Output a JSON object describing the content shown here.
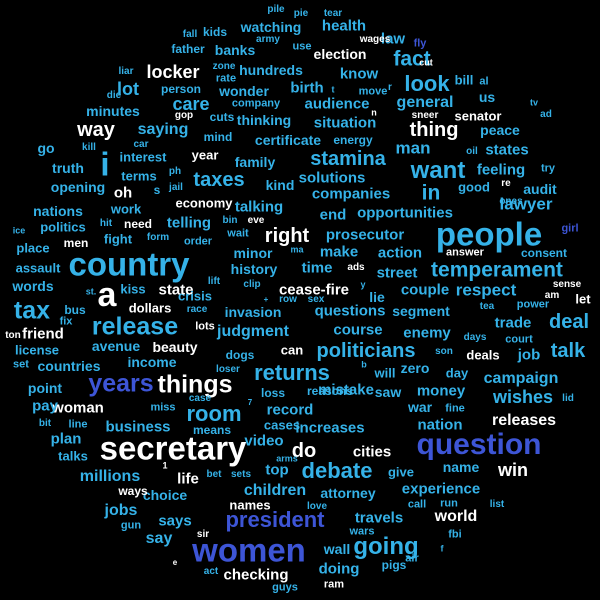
{
  "words": [
    {
      "text": "secretary",
      "tone": 0
    },
    {
      "text": "country",
      "tone": 2
    },
    {
      "text": "people",
      "tone": 2
    },
    {
      "text": "question",
      "tone": 3
    },
    {
      "text": "women",
      "tone": 3
    },
    {
      "text": "years",
      "tone": 3
    },
    {
      "text": "things",
      "tone": 0
    },
    {
      "text": "release",
      "tone": 2
    },
    {
      "text": "president",
      "tone": 3
    },
    {
      "text": "going",
      "tone": 2
    },
    {
      "text": "a",
      "tone": 0
    },
    {
      "text": "tax",
      "tone": 2
    },
    {
      "text": "i",
      "tone": 2
    },
    {
      "text": "temperament",
      "tone": 2
    },
    {
      "text": "returns",
      "tone": 2
    },
    {
      "text": "politicians",
      "tone": 2
    },
    {
      "text": "debate",
      "tone": 2
    },
    {
      "text": "want",
      "tone": 2
    },
    {
      "text": "taxes",
      "tone": 2
    },
    {
      "text": "stamina",
      "tone": 2
    },
    {
      "text": "look",
      "tone": 2
    },
    {
      "text": "fact",
      "tone": 2
    },
    {
      "text": "room",
      "tone": 2
    },
    {
      "text": "talk",
      "tone": 2
    },
    {
      "text": "deal",
      "tone": 2
    },
    {
      "text": "right",
      "tone": 0
    },
    {
      "text": "locker",
      "tone": 0
    },
    {
      "text": "way",
      "tone": 0
    },
    {
      "text": "thing",
      "tone": 0
    },
    {
      "text": "care",
      "tone": 2
    },
    {
      "text": "in",
      "tone": 2
    },
    {
      "text": "do",
      "tone": 0
    },
    {
      "text": "world",
      "tone": 0
    },
    {
      "text": "win",
      "tone": 0
    },
    {
      "text": "wishes",
      "tone": 2
    },
    {
      "text": "children",
      "tone": 2
    },
    {
      "text": "millions",
      "tone": 2
    },
    {
      "text": "campaign",
      "tone": 2
    },
    {
      "text": "lawyer",
      "tone": 2
    },
    {
      "text": "business",
      "tone": 2
    },
    {
      "text": "respect",
      "tone": 2
    },
    {
      "text": "judgment",
      "tone": 2
    },
    {
      "text": "man",
      "tone": 2
    },
    {
      "text": "releases",
      "tone": 0
    },
    {
      "text": "woman",
      "tone": 0
    },
    {
      "text": "checking",
      "tone": 0
    },
    {
      "text": "cities",
      "tone": 0
    },
    {
      "text": "life",
      "tone": 0
    },
    {
      "text": "oh",
      "tone": 0
    },
    {
      "text": "lot",
      "tone": 2
    },
    {
      "text": "saying",
      "tone": 2
    },
    {
      "text": "general",
      "tone": 2
    },
    {
      "text": "jobs",
      "tone": 2
    },
    {
      "text": "say",
      "tone": 2
    },
    {
      "text": "says",
      "tone": 2
    },
    {
      "text": "plan",
      "tone": 2
    },
    {
      "text": "pay",
      "tone": 2
    },
    {
      "text": "job",
      "tone": 2
    },
    {
      "text": "trade",
      "tone": 2
    },
    {
      "text": "enemy",
      "tone": 2
    },
    {
      "text": "couple",
      "tone": 2
    },
    {
      "text": "money",
      "tone": 2
    },
    {
      "text": "nation",
      "tone": 2
    },
    {
      "text": "experience",
      "tone": 2
    },
    {
      "text": "travels",
      "tone": 2
    },
    {
      "text": "doing",
      "tone": 2
    },
    {
      "text": "wall",
      "tone": 2
    },
    {
      "text": "record",
      "tone": 2
    },
    {
      "text": "mistake",
      "tone": 2
    },
    {
      "text": "video",
      "tone": 2
    },
    {
      "text": "top",
      "tone": 2
    },
    {
      "text": "increases",
      "tone": 2
    },
    {
      "text": "attorney",
      "tone": 2
    },
    {
      "text": "name",
      "tone": 2
    },
    {
      "text": "time",
      "tone": 2
    },
    {
      "text": "questions",
      "tone": 2
    },
    {
      "text": "course",
      "tone": 2
    },
    {
      "text": "make",
      "tone": 2
    },
    {
      "text": "action",
      "tone": 2
    },
    {
      "text": "prosecutor",
      "tone": 2
    },
    {
      "text": "opportunities",
      "tone": 2
    },
    {
      "text": "companies",
      "tone": 2
    },
    {
      "text": "solutions",
      "tone": 2
    },
    {
      "text": "end",
      "tone": 2
    },
    {
      "text": "talking",
      "tone": 2
    },
    {
      "text": "family",
      "tone": 2
    },
    {
      "text": "kind",
      "tone": 2
    },
    {
      "text": "know",
      "tone": 2
    },
    {
      "text": "situation",
      "tone": 2
    },
    {
      "text": "audience",
      "tone": 2
    },
    {
      "text": "birth",
      "tone": 2
    },
    {
      "text": "thinking",
      "tone": 2
    },
    {
      "text": "certificate",
      "tone": 2
    },
    {
      "text": "wonder",
      "tone": 2
    },
    {
      "text": "hundreds",
      "tone": 2
    },
    {
      "text": "banks",
      "tone": 2
    },
    {
      "text": "watching",
      "tone": 2
    },
    {
      "text": "health",
      "tone": 2
    },
    {
      "text": "election",
      "tone": 0
    },
    {
      "text": "law",
      "tone": 2
    },
    {
      "text": "fly",
      "tone": 3
    },
    {
      "text": "feeling",
      "tone": 2
    },
    {
      "text": "states",
      "tone": 2
    },
    {
      "text": "peace",
      "tone": 2
    },
    {
      "text": "audit",
      "tone": 2
    },
    {
      "text": "good",
      "tone": 2
    },
    {
      "text": "countries",
      "tone": 2
    },
    {
      "text": "nations",
      "tone": 2
    },
    {
      "text": "politics",
      "tone": 2
    },
    {
      "text": "opening",
      "tone": 2
    },
    {
      "text": "truth",
      "tone": 2
    },
    {
      "text": "minutes",
      "tone": 2
    },
    {
      "text": "interest",
      "tone": 2
    },
    {
      "text": "terms",
      "tone": 2
    },
    {
      "text": "work",
      "tone": 2
    },
    {
      "text": "fight",
      "tone": 2
    },
    {
      "text": "telling",
      "tone": 2
    },
    {
      "text": "economy",
      "tone": 0
    },
    {
      "text": "year",
      "tone": 0
    },
    {
      "text": "need",
      "tone": 0
    },
    {
      "text": "go",
      "tone": 2
    },
    {
      "text": "us",
      "tone": 2
    },
    {
      "text": "street",
      "tone": 2
    },
    {
      "text": "crisis",
      "tone": 2
    },
    {
      "text": "state",
      "tone": 0
    },
    {
      "text": "dollars",
      "tone": 0
    },
    {
      "text": "kiss",
      "tone": 2
    },
    {
      "text": "invasion",
      "tone": 2
    },
    {
      "text": "history",
      "tone": 2
    },
    {
      "text": "minor",
      "tone": 2
    },
    {
      "text": "cease-fire",
      "tone": 0
    },
    {
      "text": "lie",
      "tone": 2
    },
    {
      "text": "segment",
      "tone": 2
    },
    {
      "text": "let",
      "tone": 0
    },
    {
      "text": "deals",
      "tone": 0
    },
    {
      "text": "can",
      "tone": 0
    },
    {
      "text": "beauty",
      "tone": 0
    },
    {
      "text": "income",
      "tone": 2
    },
    {
      "text": "avenue",
      "tone": 2
    },
    {
      "text": "friend",
      "tone": 0
    },
    {
      "text": "license",
      "tone": 2
    },
    {
      "text": "words",
      "tone": 2
    },
    {
      "text": "assault",
      "tone": 2
    },
    {
      "text": "place",
      "tone": 2
    },
    {
      "text": "men",
      "tone": 0
    },
    {
      "text": "point",
      "tone": 2
    },
    {
      "text": "talks",
      "tone": 2
    },
    {
      "text": "choice",
      "tone": 2
    },
    {
      "text": "ways",
      "tone": 0
    },
    {
      "text": "names",
      "tone": 0
    },
    {
      "text": "give",
      "tone": 2
    },
    {
      "text": "will",
      "tone": 2
    },
    {
      "text": "saw",
      "tone": 2
    },
    {
      "text": "war",
      "tone": 2
    },
    {
      "text": "zero",
      "tone": 2
    },
    {
      "text": "day",
      "tone": 2
    },
    {
      "text": "loss",
      "tone": 2
    },
    {
      "text": "reasons",
      "tone": 2
    },
    {
      "text": "dogs",
      "tone": 2
    },
    {
      "text": "lots",
      "tone": 0
    },
    {
      "text": "cases",
      "tone": 2
    },
    {
      "text": "answer",
      "tone": 0
    },
    {
      "text": "consent",
      "tone": 2
    },
    {
      "text": "girl",
      "tone": 3
    },
    {
      "text": "ads",
      "tone": 0
    },
    {
      "text": "power",
      "tone": 2
    },
    {
      "text": "court",
      "tone": 2
    },
    {
      "text": "miss",
      "tone": 2
    },
    {
      "text": "means",
      "tone": 2
    },
    {
      "text": "fine",
      "tone": 2
    },
    {
      "text": "line",
      "tone": 2
    },
    {
      "text": "bus",
      "tone": 2
    },
    {
      "text": "fix",
      "tone": 2
    },
    {
      "text": "set",
      "tone": 2
    },
    {
      "text": "bit",
      "tone": 2
    },
    {
      "text": "gun",
      "tone": 2
    },
    {
      "text": "wars",
      "tone": 2
    },
    {
      "text": "pigs",
      "tone": 2
    },
    {
      "text": "call",
      "tone": 2
    },
    {
      "text": "run",
      "tone": 2
    },
    {
      "text": "fbi",
      "tone": 2
    },
    {
      "text": "list",
      "tone": 2
    },
    {
      "text": "air",
      "tone": 2
    },
    {
      "text": "ram",
      "tone": 0
    },
    {
      "text": "guys",
      "tone": 2
    },
    {
      "text": "act",
      "tone": 2
    },
    {
      "text": "love",
      "tone": 2
    },
    {
      "text": "sir",
      "tone": 0
    },
    {
      "text": "e",
      "tone": 0
    },
    {
      "text": "bet",
      "tone": 2
    },
    {
      "text": "sets",
      "tone": 2
    },
    {
      "text": "arms",
      "tone": 2
    },
    {
      "text": "race",
      "tone": 2
    },
    {
      "text": "row",
      "tone": 2
    },
    {
      "text": "sex",
      "tone": 2
    },
    {
      "text": "clip",
      "tone": 2
    },
    {
      "text": "lift",
      "tone": 2
    },
    {
      "text": "ma",
      "tone": 2
    },
    {
      "text": "son",
      "tone": 2
    },
    {
      "text": "days",
      "tone": 2
    },
    {
      "text": "tea",
      "tone": 2
    },
    {
      "text": "am",
      "tone": 0
    },
    {
      "text": "sense",
      "tone": 0
    },
    {
      "text": "hit",
      "tone": 2
    },
    {
      "text": "car",
      "tone": 2
    },
    {
      "text": "ph",
      "tone": 2
    },
    {
      "text": "jail",
      "tone": 2
    },
    {
      "text": "form",
      "tone": 2
    },
    {
      "text": "order",
      "tone": 2
    },
    {
      "text": "wait",
      "tone": 2
    },
    {
      "text": "bin",
      "tone": 2
    },
    {
      "text": "eve",
      "tone": 0
    },
    {
      "text": "kill",
      "tone": 2
    },
    {
      "text": "ice",
      "tone": 2
    },
    {
      "text": "re",
      "tone": 0
    },
    {
      "text": "ones",
      "tone": 2
    },
    {
      "text": "try",
      "tone": 2
    },
    {
      "text": "oil",
      "tone": 2
    },
    {
      "text": "tv",
      "tone": 2
    },
    {
      "text": "ad",
      "tone": 2
    },
    {
      "text": "al",
      "tone": 2
    },
    {
      "text": "bill",
      "tone": 2
    },
    {
      "text": "senator",
      "tone": 0
    },
    {
      "text": "sneer",
      "tone": 0
    },
    {
      "text": "move",
      "tone": 2
    },
    {
      "text": "energy",
      "tone": 2
    },
    {
      "text": "mind",
      "tone": 2
    },
    {
      "text": "cuts",
      "tone": 2
    },
    {
      "text": "gop",
      "tone": 0
    },
    {
      "text": "company",
      "tone": 2
    },
    {
      "text": "rate",
      "tone": 2
    },
    {
      "text": "person",
      "tone": 2
    },
    {
      "text": "zone",
      "tone": 2
    },
    {
      "text": "liar",
      "tone": 2
    },
    {
      "text": "die",
      "tone": 2
    },
    {
      "text": "father",
      "tone": 2
    },
    {
      "text": "kids",
      "tone": 2
    },
    {
      "text": "fall",
      "tone": 2
    },
    {
      "text": "army",
      "tone": 2
    },
    {
      "text": "pile",
      "tone": 2
    },
    {
      "text": "pie",
      "tone": 2
    },
    {
      "text": "tear",
      "tone": 2
    },
    {
      "text": "wages",
      "tone": 0
    },
    {
      "text": "cut",
      "tone": 0
    },
    {
      "text": "use",
      "tone": 2
    },
    {
      "text": "st.",
      "tone": 2
    },
    {
      "text": "ton",
      "tone": 0
    },
    {
      "text": "loser",
      "tone": 2
    },
    {
      "text": "case",
      "tone": 2
    },
    {
      "text": "t",
      "tone": 2
    },
    {
      "text": "n",
      "tone": 0
    },
    {
      "text": "y",
      "tone": 2
    },
    {
      "text": "b",
      "tone": 2
    },
    {
      "text": "7",
      "tone": 2
    },
    {
      "text": "+",
      "tone": 2
    },
    {
      "text": "1",
      "tone": 0
    },
    {
      "text": "lid",
      "tone": 2
    },
    {
      "text": "r",
      "tone": 2
    },
    {
      "text": "f",
      "tone": 2
    },
    {
      "text": "s",
      "tone": 2
    }
  ]
}
